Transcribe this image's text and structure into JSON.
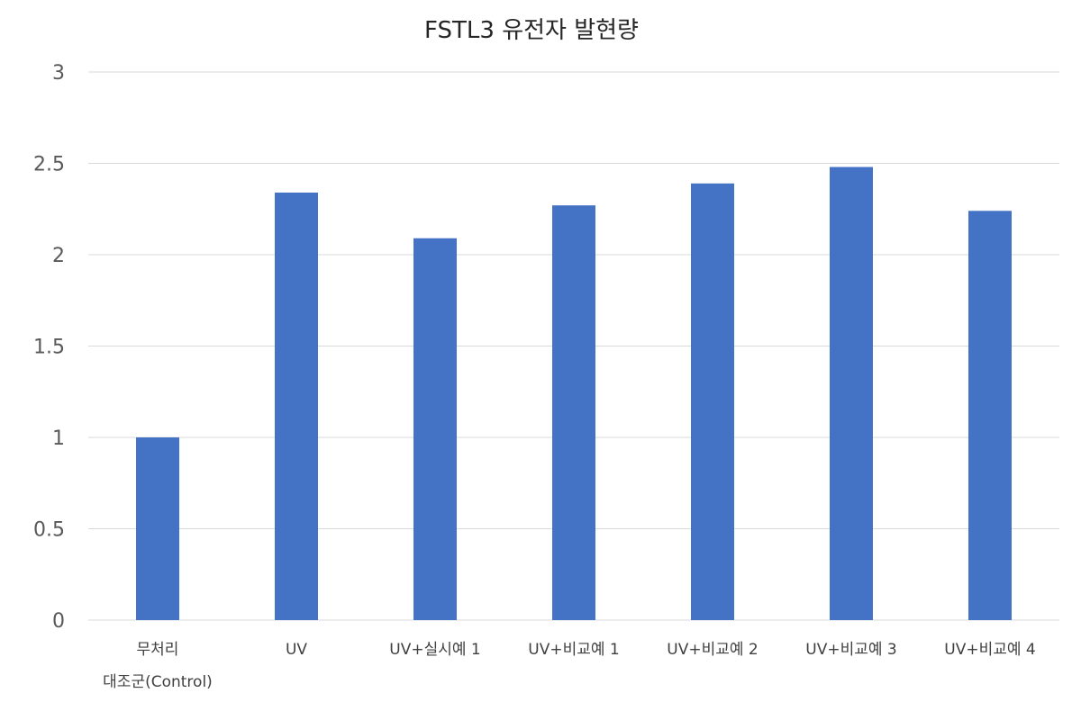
{
  "chart_data": {
    "type": "bar",
    "title": "FSTL3 유전자 발현량",
    "categories": [
      [
        "무처리",
        "대조군(Control)"
      ],
      [
        "UV"
      ],
      [
        "UV+실시예 1"
      ],
      [
        "UV+비교예 1"
      ],
      [
        "UV+비교예 2"
      ],
      [
        "UV+비교예 3"
      ],
      [
        "UV+비교예 4"
      ]
    ],
    "values": [
      1.0,
      2.34,
      2.09,
      2.27,
      2.39,
      2.48,
      2.24
    ],
    "ylim": [
      0,
      3
    ],
    "yticks": [
      0,
      0.5,
      1,
      1.5,
      2,
      2.5,
      3
    ],
    "ytick_labels": [
      "0",
      "0.5",
      "1",
      "1.5",
      "2",
      "2.5",
      "3"
    ],
    "grid": true,
    "legend": "none",
    "bar_color": "#4472C4"
  }
}
